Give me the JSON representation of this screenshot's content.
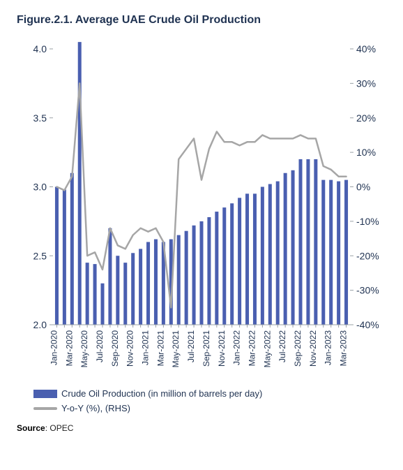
{
  "title": "Figure.2.1. Average UAE Crude Oil Production",
  "legend": {
    "bar": "Crude Oil Production (in million of barrels per day)",
    "line": "Y-o-Y (%), (RHS)"
  },
  "source_label": "Source",
  "source_value": ": OPEC",
  "chart": {
    "type": "bar+line",
    "colors": {
      "bar": "#4a5fb0",
      "line": "#a6a6a6",
      "axis_text": "#1f3251",
      "axis_line": "#7f7f7f",
      "background": "#ffffff",
      "tick_line": "#9aa0a6"
    },
    "left_axis": {
      "min": 2.0,
      "max": 4.0,
      "step": 0.5,
      "fontsize": 14
    },
    "right_axis": {
      "min": -40,
      "max": 40,
      "step": 10,
      "fontsize": 14,
      "suffix": "%"
    },
    "x_fontsize": 12,
    "line_width": 2.5,
    "bar_width_ratio": 0.46,
    "every_nth_label": 2,
    "categories": [
      "Jan-2020",
      "Feb-2020",
      "Mar-2020",
      "Apr-2020",
      "May-2020",
      "Jun-2020",
      "Jul-2020",
      "Aug-2020",
      "Sep-2020",
      "Oct-2020",
      "Nov-2020",
      "Dec-2020",
      "Jan-2021",
      "Feb-2021",
      "Mar-2021",
      "Apr-2021",
      "May-2021",
      "Jun-2021",
      "Jul-2021",
      "Aug-2021",
      "Sep-2021",
      "Oct-2021",
      "Nov-2021",
      "Dec-2021",
      "Jan-2022",
      "Feb-2022",
      "Mar-2022",
      "Apr-2022",
      "May-2022",
      "Jun-2022",
      "Jul-2022",
      "Aug-2022",
      "Sep-2022",
      "Oct-2022",
      "Nov-2022",
      "Dec-2022",
      "Jan-2023",
      "Feb-2023",
      "Mar-2023"
    ],
    "bars": [
      3.0,
      2.98,
      3.1,
      4.05,
      2.45,
      2.44,
      2.3,
      2.7,
      2.5,
      2.45,
      2.52,
      2.55,
      2.6,
      2.62,
      2.6,
      2.62,
      2.65,
      2.68,
      2.72,
      2.75,
      2.78,
      2.82,
      2.85,
      2.88,
      2.92,
      2.95,
      2.95,
      3.0,
      3.02,
      3.04,
      3.1,
      3.12,
      3.2,
      3.2,
      3.2,
      3.05,
      3.05,
      3.04,
      3.05
    ],
    "line": [
      0,
      -1,
      3,
      30,
      -20,
      -19,
      -24,
      -12,
      -17,
      -18,
      -14,
      -12,
      -13,
      -12,
      -16,
      -35,
      8,
      11,
      14,
      2,
      11,
      16,
      13,
      13,
      12,
      13,
      13,
      15,
      14,
      14,
      14,
      14,
      15,
      14,
      14,
      6,
      5,
      3,
      3
    ]
  }
}
